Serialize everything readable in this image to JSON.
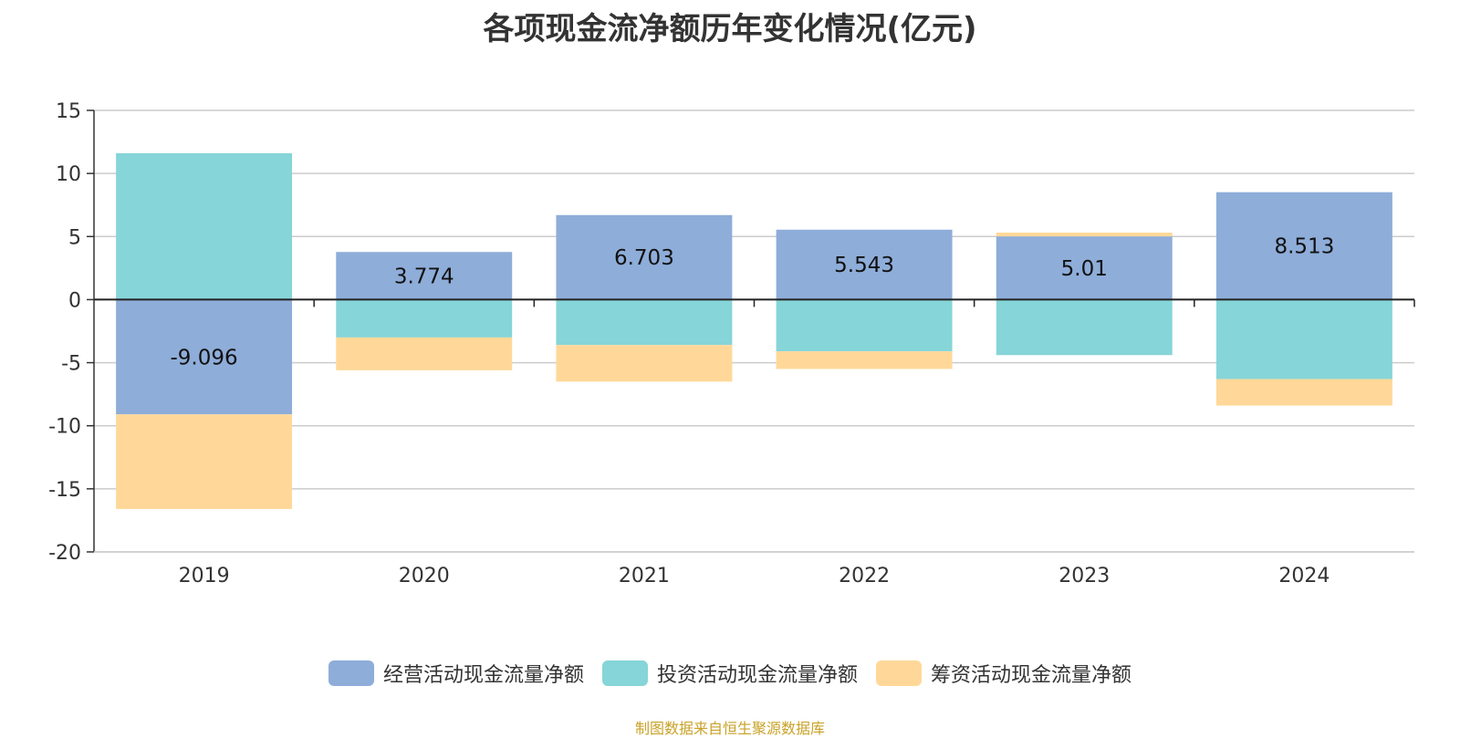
{
  "chart_data": {
    "type": "bar",
    "stacked": true,
    "title": "各项现金流净额历年变化情况(亿元)",
    "categories": [
      "2019",
      "2020",
      "2021",
      "2022",
      "2023",
      "2024"
    ],
    "ylim": [
      -20,
      15
    ],
    "yticks": [
      "15",
      "10",
      "5",
      "0",
      "-5",
      "-10",
      "-15",
      "-20"
    ],
    "ytick_values": [
      15,
      10,
      5,
      0,
      -5,
      -10,
      -15,
      -20
    ],
    "grid": true,
    "legend_position": "bottom",
    "series": [
      {
        "name": "经营活动现金流量净额",
        "color": "#8eadd9",
        "values": [
          -9.096,
          3.774,
          6.703,
          5.543,
          5.01,
          8.513
        ],
        "labels": [
          "-9.096",
          "3.774",
          "6.703",
          "5.543",
          "5.01",
          "8.513"
        ]
      },
      {
        "name": "投资活动现金流量净额",
        "color": "#86d5d8",
        "values": [
          11.6,
          -3.0,
          -3.6,
          -4.1,
          -4.4,
          -6.3
        ]
      },
      {
        "name": "筹资活动现金流量净额",
        "color": "#ffd899",
        "values": [
          -7.5,
          -2.6,
          -2.9,
          -1.4,
          0.3,
          -2.1
        ]
      }
    ]
  },
  "source_note": "制图数据来自恒生聚源数据库"
}
